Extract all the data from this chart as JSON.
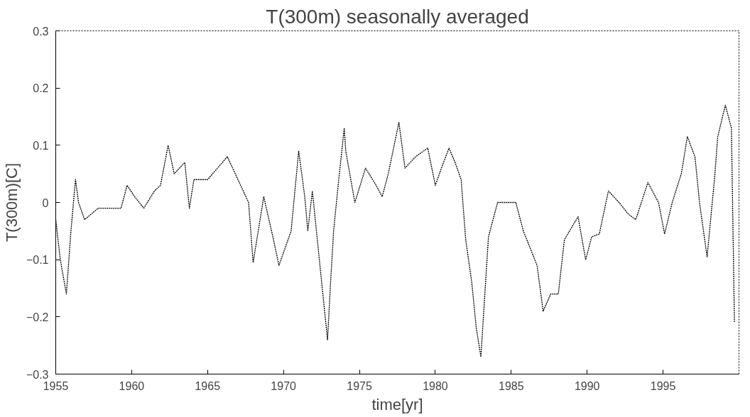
{
  "chart_data": {
    "type": "line",
    "title": "T(300m) seasonally averaged",
    "xlabel": "time[yr]",
    "ylabel": "T(300m)[C]",
    "xlim": [
      1955,
      2000
    ],
    "xticks": [
      1955,
      1960,
      1965,
      1970,
      1975,
      1980,
      1985,
      1990,
      1995
    ],
    "ylim": [
      -0.3,
      0.3
    ],
    "yticks": [
      -0.3,
      -0.2,
      -0.1,
      0.0,
      0.1,
      0.2,
      0.3
    ],
    "grid": false,
    "line_style": "dotted",
    "marker": "none",
    "series": [
      {
        "color": "#000000",
        "x": [
          1955.0,
          1955.3,
          1955.7,
          1956.0,
          1956.3,
          1956.5,
          1956.9,
          1957.8,
          1958.6,
          1959.3,
          1959.7,
          1960.2,
          1960.8,
          1961.5,
          1961.9,
          1962.4,
          1962.8,
          1963.5,
          1963.8,
          1964.1,
          1965.0,
          1966.3,
          1967.0,
          1967.7,
          1968.0,
          1968.7,
          1969.3,
          1969.7,
          1970.5,
          1971.0,
          1971.4,
          1971.6,
          1971.9,
          1972.9,
          1973.1,
          1973.3,
          1973.6,
          1974.0,
          1974.1,
          1974.7,
          1975.4,
          1976.1,
          1976.5,
          1976.9,
          1977.6,
          1978.0,
          1978.7,
          1979.5,
          1980.0,
          1980.4,
          1980.9,
          1981.3,
          1981.7,
          1982.0,
          1982.4,
          1982.7,
          1983.0,
          1983.5,
          1984.1,
          1985.3,
          1985.8,
          1986.7,
          1987.1,
          1987.6,
          1988.1,
          1988.5,
          1989.4,
          1989.9,
          1990.3,
          1990.8,
          1991.4,
          1992.1,
          1992.7,
          1993.2,
          1994.0,
          1994.7,
          1995.1,
          1995.6,
          1996.2,
          1996.6,
          1997.1,
          1997.4,
          1997.9,
          1998.4,
          1998.6,
          1999.1,
          1999.5,
          1999.7
        ],
        "values": [
          -0.03,
          -0.1,
          -0.16,
          -0.05,
          0.04,
          0.0,
          -0.03,
          -0.01,
          -0.01,
          -0.01,
          0.03,
          0.01,
          -0.01,
          0.02,
          0.03,
          0.1,
          0.05,
          0.07,
          -0.01,
          0.04,
          0.04,
          0.08,
          0.04,
          0.0,
          -0.105,
          0.01,
          -0.06,
          -0.11,
          -0.05,
          0.09,
          0.01,
          -0.05,
          0.02,
          -0.24,
          -0.14,
          -0.05,
          0.03,
          0.13,
          0.09,
          0.0,
          0.06,
          0.03,
          0.01,
          0.05,
          0.14,
          0.06,
          0.08,
          0.095,
          0.03,
          0.06,
          0.095,
          0.07,
          0.04,
          -0.065,
          -0.14,
          -0.22,
          -0.27,
          -0.06,
          0.0,
          0.0,
          -0.05,
          -0.11,
          -0.19,
          -0.16,
          -0.16,
          -0.065,
          -0.025,
          -0.1,
          -0.06,
          -0.055,
          0.02,
          0.0,
          -0.02,
          -0.03,
          0.035,
          0.0,
          -0.055,
          0.0,
          0.05,
          0.115,
          0.08,
          0.0,
          -0.095,
          0.045,
          0.115,
          0.17,
          0.13,
          -0.21
        ]
      }
    ]
  }
}
